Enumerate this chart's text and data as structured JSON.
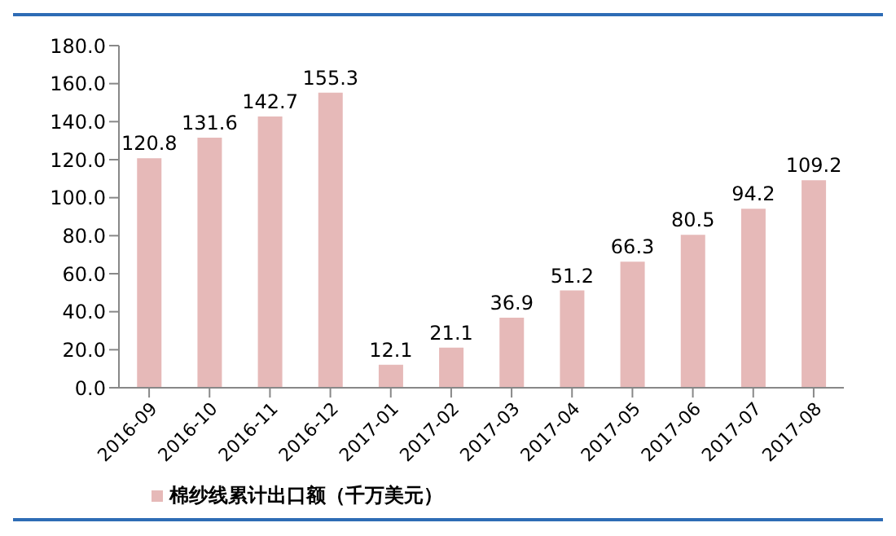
{
  "chart_data": {
    "type": "bar",
    "categories": [
      "2016-09",
      "2016-10",
      "2016-11",
      "2016-12",
      "2017-01",
      "2017-02",
      "2017-03",
      "2017-04",
      "2017-05",
      "2017-06",
      "2017-07",
      "2017-08"
    ],
    "series": [
      {
        "name": "棉纱线累计出口额（千万美元）",
        "color": "#e6b9b8",
        "values": [
          120.8,
          131.6,
          142.7,
          155.3,
          12.1,
          21.1,
          36.9,
          51.2,
          66.3,
          80.5,
          94.2,
          109.2
        ]
      }
    ],
    "ylim": [
      0,
      180
    ],
    "yticks": [
      {
        "value": 0,
        "label": "0.0"
      },
      {
        "value": 20,
        "label": "20.0"
      },
      {
        "value": 40,
        "label": "40.0"
      },
      {
        "value": 60,
        "label": "60.0"
      },
      {
        "value": 80,
        "label": "80.0"
      },
      {
        "value": 100,
        "label": "100.0"
      },
      {
        "value": 120,
        "label": "120.0"
      },
      {
        "value": 140,
        "label": "140.0"
      },
      {
        "value": 160,
        "label": "160.0"
      },
      {
        "value": 180,
        "label": "180.0"
      }
    ],
    "data_labels": true,
    "grid": false,
    "legend": "bottom left"
  }
}
